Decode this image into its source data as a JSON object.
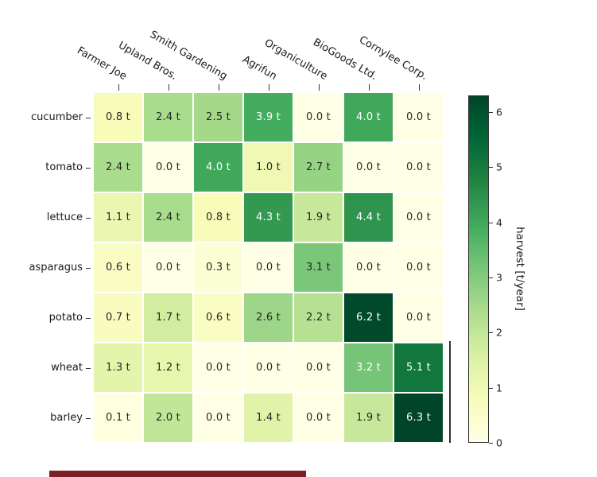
{
  "chart_data": {
    "type": "heatmap",
    "rows": [
      "cucumber",
      "tomato",
      "lettuce",
      "asparagus",
      "potato",
      "wheat",
      "barley"
    ],
    "columns": [
      "Farmer Joe",
      "Upland Bros.",
      "Smith Gardening",
      "Agrifun",
      "Organiculture",
      "BioGoods Ltd.",
      "Cornylee Corp."
    ],
    "values": [
      [
        0.8,
        2.4,
        2.5,
        3.9,
        0.0,
        4.0,
        0.0
      ],
      [
        2.4,
        0.0,
        4.0,
        1.0,
        2.7,
        0.0,
        0.0
      ],
      [
        1.1,
        2.4,
        0.8,
        4.3,
        1.9,
        4.4,
        0.0
      ],
      [
        0.6,
        0.0,
        0.3,
        0.0,
        3.1,
        0.0,
        0.0
      ],
      [
        0.7,
        1.7,
        0.6,
        2.6,
        2.2,
        6.2,
        0.0
      ],
      [
        1.3,
        1.2,
        0.0,
        0.0,
        0.0,
        3.2,
        5.1
      ],
      [
        0.1,
        2.0,
        0.0,
        1.4,
        0.0,
        1.9,
        6.3
      ]
    ],
    "cell_label_suffix": " t",
    "vmin": 0,
    "vmax": 6.3,
    "colormap": {
      "name": "YlGn",
      "stops": [
        "#ffffe5",
        "#f7fcb9",
        "#d9f0a3",
        "#addd8e",
        "#78c679",
        "#41ab5d",
        "#238443",
        "#006837",
        "#004529"
      ]
    },
    "text_colors": {
      "light": "#ffffff",
      "dark": "#262626",
      "threshold": 3.15
    },
    "colorbar": {
      "label": "harvest [t/year]",
      "ticks": [
        0,
        1,
        2,
        3,
        4,
        5,
        6
      ],
      "position": "right",
      "grid": false,
      "legend": false
    }
  },
  "decor": {
    "bottom_strip_color": "#7d2026"
  }
}
